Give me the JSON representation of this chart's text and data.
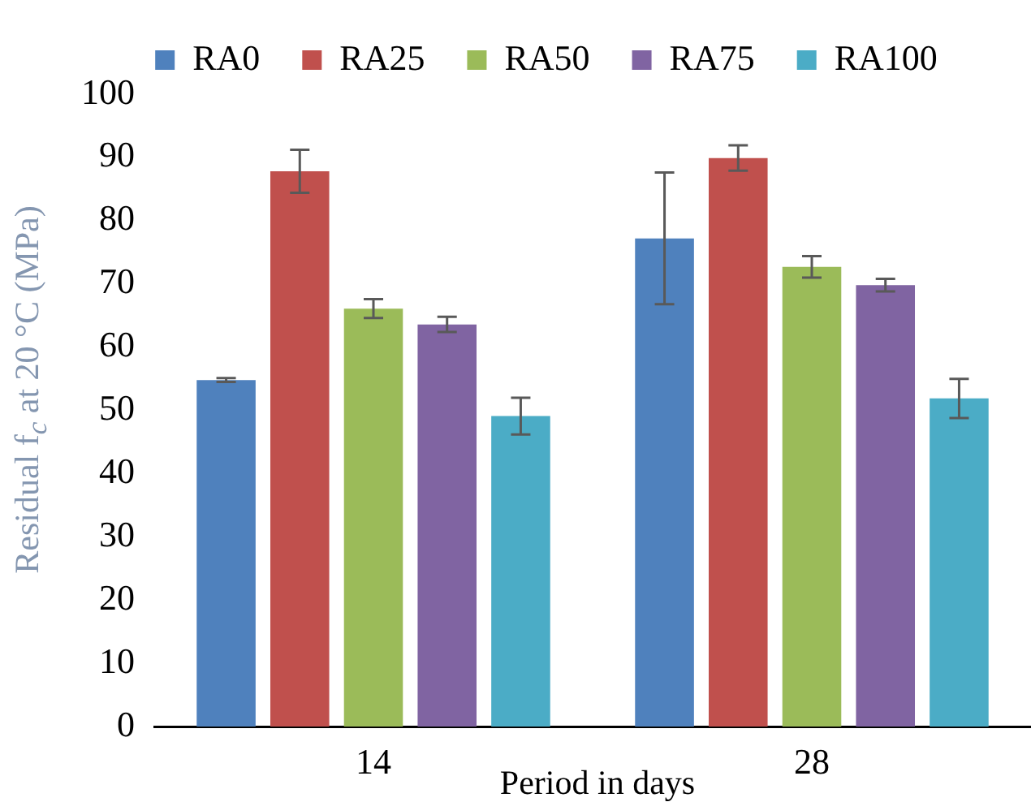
{
  "chart_data": {
    "type": "bar",
    "ylabel": "Residual f$_{c}$ at 20 °C (MPa)",
    "xlabel": "Period in days",
    "categories": [
      "14",
      "28"
    ],
    "series": [
      {
        "name": "RA0",
        "color": "#4f81bd",
        "values": [
          54.8,
          77.2
        ],
        "errors": [
          0.3,
          10.4
        ]
      },
      {
        "name": "RA25",
        "color": "#c0504d",
        "values": [
          87.8,
          89.9
        ],
        "errors": [
          3.4,
          2
        ]
      },
      {
        "name": "RA50",
        "color": "#9bbb59",
        "values": [
          66.1,
          72.7
        ],
        "errors": [
          1.5,
          1.7
        ]
      },
      {
        "name": "RA75",
        "color": "#8064a2",
        "values": [
          63.6,
          69.8
        ],
        "errors": [
          1.2,
          1
        ]
      },
      {
        "name": "RA100",
        "color": "#4bacc6",
        "values": [
          49.1,
          51.9
        ],
        "errors": [
          2.9,
          3.1
        ]
      }
    ],
    "ylim": [
      0,
      100
    ],
    "yticks": [
      0,
      10,
      20,
      30,
      40,
      50,
      60,
      70,
      80,
      90,
      100
    ],
    "grid": false,
    "legend": "top"
  }
}
